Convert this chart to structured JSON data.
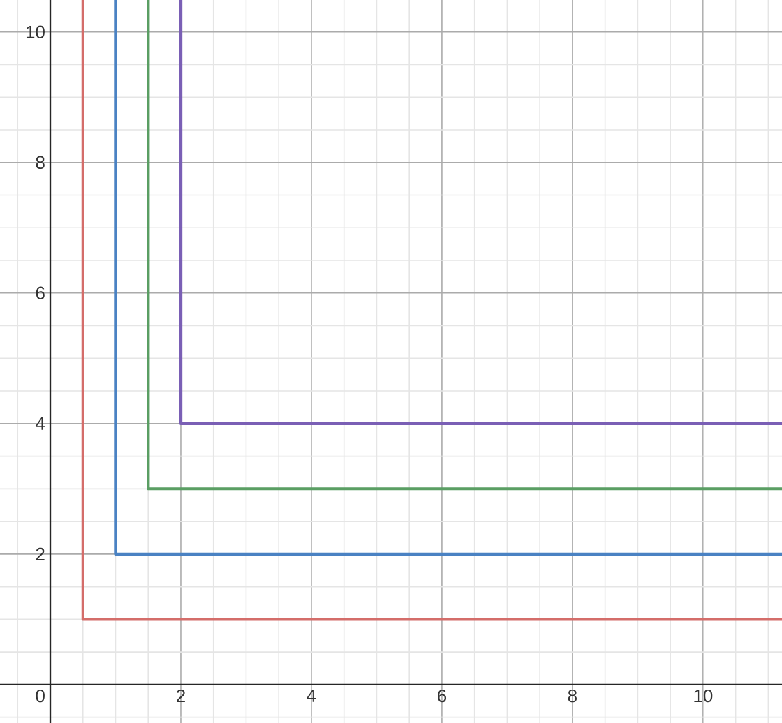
{
  "chart_data": {
    "type": "line",
    "xlim": [
      -0.77,
      11.21
    ],
    "ylim": [
      -0.59,
      10.49
    ],
    "xticks": [
      0,
      2,
      4,
      6,
      8,
      10
    ],
    "yticks": [
      2,
      4,
      6,
      8,
      10
    ],
    "grid": true,
    "series": [
      {
        "color": "#d46d6a",
        "x": [
          0.5,
          0.5,
          11.21
        ],
        "values": [
          10.49,
          1,
          1
        ]
      },
      {
        "color": "#4a82c3",
        "x": [
          1,
          1,
          11.21
        ],
        "values": [
          10.49,
          2,
          2
        ]
      },
      {
        "color": "#5a9e63",
        "x": [
          1.5,
          1.5,
          11.21
        ],
        "values": [
          10.49,
          3,
          3
        ]
      },
      {
        "color": "#7a5fb5",
        "x": [
          2,
          2,
          11.21
        ],
        "values": [
          10.49,
          4,
          4
        ]
      }
    ]
  }
}
